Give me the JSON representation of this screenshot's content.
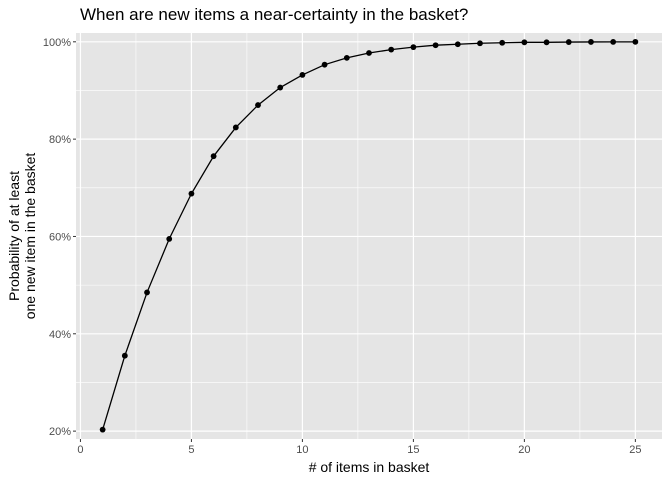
{
  "chart_data": {
    "type": "line",
    "title": "When are new items a near-certainty in the basket?",
    "xlabel": "# of items in basket",
    "ylabel_lines": [
      "Probability of at least",
      "one new item in the basket"
    ],
    "x": [
      1,
      2,
      3,
      4,
      5,
      6,
      7,
      8,
      9,
      10,
      11,
      12,
      13,
      14,
      15,
      16,
      17,
      18,
      19,
      20,
      21,
      22,
      23,
      24,
      25
    ],
    "values": [
      0.203,
      0.355,
      0.485,
      0.595,
      0.688,
      0.765,
      0.824,
      0.87,
      0.906,
      0.932,
      0.953,
      0.967,
      0.977,
      0.984,
      0.989,
      0.993,
      0.995,
      0.997,
      0.998,
      0.999,
      0.999,
      0.9995,
      0.9997,
      0.9998,
      0.9999
    ],
    "xlim": [
      -0.2,
      26.2
    ],
    "ylim": [
      0.1838,
      1.0181
    ],
    "x_ticks": [
      0,
      5,
      10,
      15,
      20,
      25
    ],
    "x_tick_labels": [
      "0",
      "5",
      "10",
      "15",
      "20",
      "25"
    ],
    "y_ticks": [
      0.2,
      0.4,
      0.6,
      0.8,
      1.0
    ],
    "y_tick_labels": [
      "20%",
      "40%",
      "60%",
      "80%",
      "100%"
    ],
    "grid": true,
    "colors": {
      "panel": "#e5e5e5",
      "grid": "#ffffff",
      "line": "#000000",
      "point": "#000000"
    }
  }
}
